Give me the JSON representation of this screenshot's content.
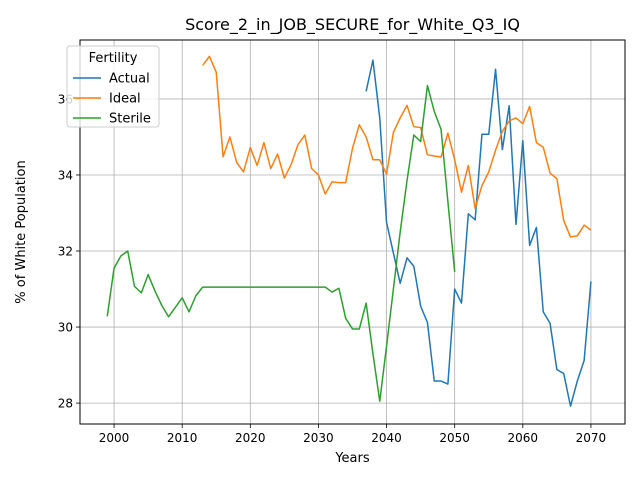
{
  "chart_data": {
    "type": "line",
    "title": "Score_2_in_JOB_SECURE_for_White_Q3_IQ",
    "xlabel": "Years",
    "ylabel": "% of White Population",
    "xlim": [
      1995,
      2075
    ],
    "ylim": [
      27.45,
      37.55
    ],
    "xticks": [
      2000,
      2010,
      2020,
      2030,
      2040,
      2050,
      2060,
      2070
    ],
    "yticks": [
      28,
      30,
      32,
      34,
      36
    ],
    "grid": true,
    "legend": {
      "title": "Fertility",
      "position": "top-left"
    },
    "series": [
      {
        "name": "Actual",
        "color": "#1f77b4",
        "x": [
          2037,
          2038,
          2039,
          2040,
          2041,
          2042,
          2043,
          2044,
          2045,
          2046,
          2047,
          2048,
          2049,
          2050,
          2051,
          2052,
          2053,
          2054,
          2055,
          2056,
          2057,
          2058,
          2059,
          2060,
          2061,
          2062,
          2063,
          2064,
          2065,
          2066,
          2067,
          2068,
          2069,
          2070
        ],
        "y": [
          36.2,
          37.02,
          35.5,
          32.75,
          31.95,
          31.15,
          31.82,
          31.6,
          30.55,
          30.12,
          28.58,
          28.58,
          28.5,
          31.0,
          30.63,
          32.98,
          32.82,
          35.07,
          35.07,
          36.78,
          34.67,
          35.82,
          32.7,
          34.9,
          32.15,
          32.62,
          30.4,
          30.1,
          28.88,
          28.78,
          27.92,
          28.58,
          29.12,
          31.2
        ]
      },
      {
        "name": "Ideal",
        "color": "#ff7f0e",
        "x": [
          2013,
          2014,
          2015,
          2016,
          2017,
          2018,
          2019,
          2020,
          2021,
          2022,
          2023,
          2024,
          2025,
          2026,
          2027,
          2028,
          2029,
          2030,
          2031,
          2032,
          2033,
          2034,
          2035,
          2036,
          2037,
          2038,
          2039,
          2040,
          2041,
          2042,
          2043,
          2044,
          2045,
          2046,
          2047,
          2048,
          2049,
          2050,
          2051,
          2052,
          2053,
          2054,
          2055,
          2056,
          2057,
          2058,
          2059,
          2060,
          2061,
          2062,
          2063,
          2064,
          2065,
          2066,
          2067,
          2068,
          2069,
          2070
        ],
        "y": [
          36.88,
          37.12,
          36.7,
          34.48,
          35.0,
          34.33,
          34.08,
          34.72,
          34.25,
          34.85,
          34.17,
          34.55,
          33.92,
          34.28,
          34.8,
          35.05,
          34.17,
          34.0,
          33.5,
          33.82,
          33.8,
          33.8,
          34.7,
          35.32,
          35.0,
          34.4,
          34.4,
          34.02,
          35.12,
          35.5,
          35.83,
          35.27,
          35.25,
          34.53,
          34.5,
          34.47,
          35.1,
          34.4,
          33.55,
          34.25,
          33.12,
          33.72,
          34.08,
          34.65,
          35.15,
          35.42,
          35.5,
          35.35,
          35.8,
          34.85,
          34.73,
          34.05,
          33.9,
          32.8,
          32.37,
          32.4,
          32.68,
          32.55
        ]
      },
      {
        "name": "Sterile",
        "color": "#2ca02c",
        "x": [
          1999,
          2000,
          2001,
          2002,
          2003,
          2004,
          2005,
          2006,
          2007,
          2008,
          2009,
          2010,
          2011,
          2012,
          2013,
          2014,
          2015,
          2016,
          2017,
          2018,
          2019,
          2020,
          2021,
          2022,
          2023,
          2024,
          2025,
          2026,
          2027,
          2028,
          2029,
          2030,
          2031,
          2032,
          2033,
          2034,
          2035,
          2036,
          2037,
          2038,
          2039,
          2040,
          2041,
          2042,
          2043,
          2044,
          2045,
          2046,
          2047,
          2048,
          2049,
          2050
        ],
        "y": [
          30.28,
          31.55,
          31.87,
          32.0,
          31.07,
          30.9,
          31.38,
          30.95,
          30.57,
          30.27,
          30.52,
          30.77,
          30.4,
          30.82,
          31.05,
          31.05,
          31.05,
          31.05,
          31.05,
          31.05,
          31.05,
          31.05,
          31.05,
          31.05,
          31.05,
          31.05,
          31.05,
          31.05,
          31.05,
          31.05,
          31.05,
          31.05,
          31.05,
          30.92,
          31.02,
          30.23,
          29.95,
          29.95,
          30.63,
          29.3,
          28.05,
          29.5,
          31.0,
          32.5,
          33.85,
          35.05,
          34.88,
          36.35,
          35.67,
          35.2,
          33.3,
          31.45
        ]
      }
    ]
  }
}
